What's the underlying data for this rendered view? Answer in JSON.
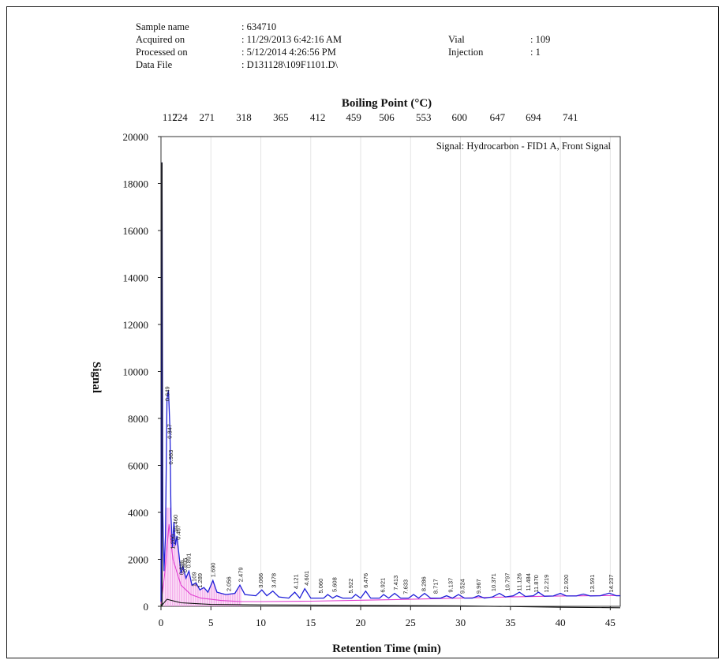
{
  "header": {
    "sample_name_label": "Sample name",
    "sample_name_value": ": 634710",
    "acquired_label": "Acquired on",
    "acquired_value": ": 11/29/2013 6:42:16 AM",
    "processed_label": "Processed on",
    "processed_value": ": 5/12/2014 4:26:56 PM",
    "datafile_label": "Data File",
    "datafile_value": ": D131128\\109F1101.D\\",
    "vial_label": "Vial",
    "vial_value": ": 109",
    "injection_label": "Injection",
    "injection_value": ": 1"
  },
  "chart_data": {
    "type": "line",
    "title": "",
    "signal_label": "Signal: Hydrocarbon - FID1 A, Front Signal",
    "xlabel": "Retention Time (min)",
    "ylabel": "Signal",
    "top_axis_label": "Boiling Point (°C)",
    "xlim": [
      0,
      46
    ],
    "ylim": [
      0,
      20000
    ],
    "x_ticks": [
      0,
      5,
      10,
      15,
      20,
      25,
      30,
      35,
      40,
      45
    ],
    "y_ticks": [
      0,
      2000,
      4000,
      6000,
      8000,
      10000,
      12000,
      14000,
      16000,
      18000,
      20000
    ],
    "grid": true,
    "top_axis_ticks": [
      {
        "x": 0.9,
        "label": "117"
      },
      {
        "x": 1.9,
        "label": "224"
      },
      {
        "x": 4.6,
        "label": "271"
      },
      {
        "x": 8.3,
        "label": "318"
      },
      {
        "x": 12.0,
        "label": "365"
      },
      {
        "x": 15.7,
        "label": "412"
      },
      {
        "x": 19.3,
        "label": "459"
      },
      {
        "x": 22.6,
        "label": "506"
      },
      {
        "x": 26.3,
        "label": "553"
      },
      {
        "x": 29.9,
        "label": "600"
      },
      {
        "x": 33.7,
        "label": "647"
      },
      {
        "x": 37.3,
        "label": "694"
      },
      {
        "x": 41.0,
        "label": "741"
      }
    ],
    "series": [
      {
        "color": "#1f1fd8",
        "points": [
          [
            0.0,
            200
          ],
          [
            0.1,
            18900
          ],
          [
            0.18,
            4000
          ],
          [
            0.3,
            1500
          ],
          [
            0.45,
            3000
          ],
          [
            0.6,
            8800
          ],
          [
            0.75,
            9200
          ],
          [
            0.9,
            7500
          ],
          [
            1.0,
            3800
          ],
          [
            1.15,
            2500
          ],
          [
            1.3,
            3600
          ],
          [
            1.45,
            2600
          ],
          [
            1.6,
            3000
          ],
          [
            1.8,
            2200
          ],
          [
            2.0,
            1400
          ],
          [
            2.2,
            1700
          ],
          [
            2.5,
            1200
          ],
          [
            2.8,
            1500
          ],
          [
            3.1,
            900
          ],
          [
            3.5,
            1000
          ],
          [
            3.9,
            700
          ],
          [
            4.3,
            800
          ],
          [
            4.7,
            600
          ],
          [
            5.2,
            1100
          ],
          [
            5.6,
            600
          ],
          [
            6.5,
            500
          ],
          [
            7.4,
            550
          ],
          [
            7.9,
            900
          ],
          [
            8.4,
            500
          ],
          [
            9.5,
            450
          ],
          [
            10.1,
            700
          ],
          [
            10.6,
            450
          ],
          [
            11.2,
            650
          ],
          [
            11.8,
            400
          ],
          [
            12.8,
            350
          ],
          [
            13.4,
            600
          ],
          [
            13.9,
            350
          ],
          [
            14.4,
            750
          ],
          [
            15.0,
            350
          ],
          [
            16.3,
            350
          ],
          [
            16.7,
            500
          ],
          [
            17.2,
            350
          ],
          [
            17.6,
            450
          ],
          [
            18.2,
            350
          ],
          [
            19.1,
            350
          ],
          [
            19.5,
            500
          ],
          [
            20.0,
            350
          ],
          [
            20.5,
            650
          ],
          [
            21.0,
            350
          ],
          [
            21.9,
            350
          ],
          [
            22.3,
            500
          ],
          [
            22.8,
            350
          ],
          [
            23.4,
            550
          ],
          [
            24.0,
            350
          ],
          [
            24.8,
            350
          ],
          [
            25.3,
            500
          ],
          [
            25.8,
            350
          ],
          [
            26.4,
            550
          ],
          [
            27.0,
            350
          ],
          [
            28.0,
            350
          ],
          [
            28.6,
            450
          ],
          [
            29.2,
            350
          ],
          [
            29.8,
            500
          ],
          [
            30.4,
            350
          ],
          [
            31.2,
            350
          ],
          [
            31.8,
            450
          ],
          [
            32.4,
            350
          ],
          [
            33.2,
            400
          ],
          [
            33.9,
            550
          ],
          [
            34.5,
            400
          ],
          [
            35.3,
            450
          ],
          [
            35.9,
            600
          ],
          [
            36.5,
            420
          ],
          [
            37.3,
            450
          ],
          [
            37.8,
            600
          ],
          [
            38.4,
            430
          ],
          [
            39.3,
            440
          ],
          [
            40.0,
            550
          ],
          [
            40.6,
            440
          ],
          [
            41.6,
            440
          ],
          [
            42.3,
            520
          ],
          [
            43.0,
            440
          ],
          [
            44.0,
            450
          ],
          [
            44.9,
            560
          ],
          [
            45.6,
            450
          ],
          [
            46.0,
            450
          ]
        ]
      },
      {
        "color": "#e040d0",
        "points": [
          [
            0.0,
            100
          ],
          [
            0.4,
            1500
          ],
          [
            0.8,
            3500
          ],
          [
            1.2,
            2000
          ],
          [
            2.0,
            900
          ],
          [
            3.0,
            500
          ],
          [
            4.0,
            350
          ],
          [
            6.0,
            250
          ],
          [
            8.0,
            200
          ],
          [
            10.0,
            200
          ],
          [
            15.0,
            220
          ],
          [
            20.0,
            260
          ],
          [
            25.0,
            300
          ],
          [
            30.0,
            350
          ],
          [
            35.0,
            400
          ],
          [
            40.0,
            440
          ],
          [
            46.0,
            460
          ]
        ]
      },
      {
        "color": "#111111",
        "points": [
          [
            0.0,
            0
          ],
          [
            0.6,
            300
          ],
          [
            2.0,
            150
          ],
          [
            5.0,
            80
          ],
          [
            10.0,
            60
          ],
          [
            20.0,
            40
          ],
          [
            30.0,
            20
          ],
          [
            40.0,
            -40
          ],
          [
            46.0,
            -60
          ]
        ]
      }
    ],
    "peak_labels": [
      {
        "x": 0.65,
        "y": 8600,
        "label": "0.649"
      },
      {
        "x": 0.85,
        "y": 7000,
        "label": "0.847"
      },
      {
        "x": 1.0,
        "y": 5900,
        "label": "0.983"
      },
      {
        "x": 1.2,
        "y": 2300,
        "label": "1.200"
      },
      {
        "x": 1.45,
        "y": 3000,
        "label": "10.460"
      },
      {
        "x": 1.75,
        "y": 2700,
        "label": "0.467"
      },
      {
        "x": 2.05,
        "y": 1200,
        "label": "0.886"
      },
      {
        "x": 2.4,
        "y": 1300,
        "label": "0.895"
      },
      {
        "x": 2.75,
        "y": 1500,
        "label": "0.891"
      },
      {
        "x": 3.3,
        "y": 700,
        "label": "1.109"
      },
      {
        "x": 3.9,
        "y": 650,
        "label": "1.289"
      },
      {
        "x": 5.2,
        "y": 1100,
        "label": "1.690"
      },
      {
        "x": 6.8,
        "y": 500,
        "label": "2.056"
      },
      {
        "x": 8.0,
        "y": 900,
        "label": "2.479"
      },
      {
        "x": 10.0,
        "y": 650,
        "label": "3.066"
      },
      {
        "x": 11.3,
        "y": 650,
        "label": "3.478"
      },
      {
        "x": 13.5,
        "y": 600,
        "label": "4.121"
      },
      {
        "x": 14.6,
        "y": 750,
        "label": "4.601"
      },
      {
        "x": 16.0,
        "y": 420,
        "label": "5.060"
      },
      {
        "x": 17.4,
        "y": 470,
        "label": "5.608"
      },
      {
        "x": 19.0,
        "y": 420,
        "label": "5.922"
      },
      {
        "x": 20.5,
        "y": 650,
        "label": "6.476"
      },
      {
        "x": 22.2,
        "y": 450,
        "label": "6.921"
      },
      {
        "x": 23.5,
        "y": 550,
        "label": "7.413"
      },
      {
        "x": 24.5,
        "y": 380,
        "label": "7.633"
      },
      {
        "x": 26.3,
        "y": 500,
        "label": "8.286"
      },
      {
        "x": 27.5,
        "y": 400,
        "label": "8.717"
      },
      {
        "x": 29.0,
        "y": 450,
        "label": "9.137"
      },
      {
        "x": 30.2,
        "y": 400,
        "label": "9.524"
      },
      {
        "x": 31.8,
        "y": 400,
        "label": "9.967"
      },
      {
        "x": 33.3,
        "y": 500,
        "label": "10.371"
      },
      {
        "x": 34.7,
        "y": 520,
        "label": "10.797"
      },
      {
        "x": 35.9,
        "y": 520,
        "label": "11.126"
      },
      {
        "x": 36.8,
        "y": 520,
        "label": "11.484"
      },
      {
        "x": 37.6,
        "y": 450,
        "label": "11.870"
      },
      {
        "x": 38.6,
        "y": 450,
        "label": "12.219"
      },
      {
        "x": 40.6,
        "y": 450,
        "label": "12.920"
      },
      {
        "x": 43.2,
        "y": 450,
        "label": "13.591"
      },
      {
        "x": 45.1,
        "y": 450,
        "label": "14.237"
      }
    ]
  }
}
